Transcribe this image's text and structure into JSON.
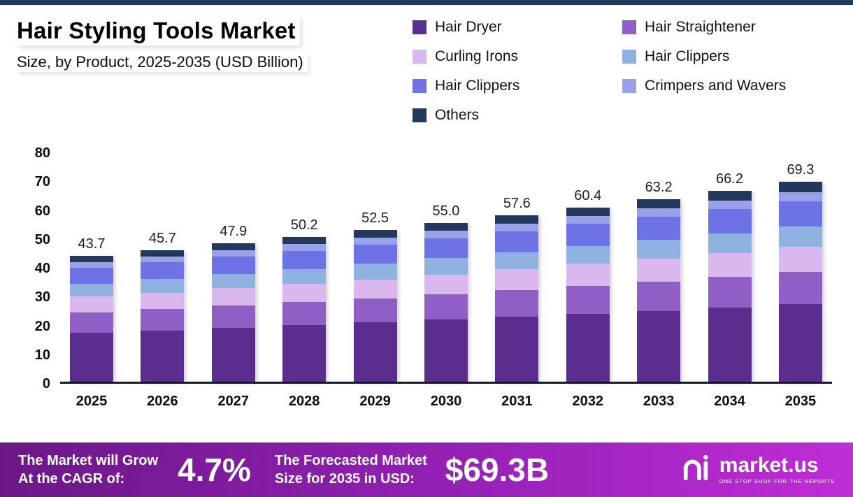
{
  "header": {
    "title": "Hair Styling Tools Market",
    "subtitle": "Size, by Product, 2025-2035 (USD Billion)"
  },
  "legend": [
    {
      "label": "Hair Dryer",
      "color": "#5b2d8f"
    },
    {
      "label": "Hair Straightener",
      "color": "#8f5fc6"
    },
    {
      "label": "Curling Irons",
      "color": "#d9b9ed"
    },
    {
      "label": "Hair Clippers",
      "color": "#8fb2e0"
    },
    {
      "label": "Hair Clippers",
      "color": "#6d72e4"
    },
    {
      "label": "Crimpers and Wavers",
      "color": "#9aa0ea"
    },
    {
      "label": "Others",
      "color": "#20395c"
    }
  ],
  "chart_data": {
    "type": "bar",
    "stacked": true,
    "title": "Hair Styling Tools Market Size, by Product, 2025-2035 (USD Billion)",
    "xlabel": "",
    "ylabel": "",
    "ylim": [
      0,
      80
    ],
    "yticks": [
      0,
      10,
      20,
      30,
      40,
      50,
      60,
      70,
      80
    ],
    "grid": false,
    "legend_position": "top-right",
    "categories": [
      "2025",
      "2026",
      "2027",
      "2028",
      "2029",
      "2030",
      "2031",
      "2032",
      "2033",
      "2034",
      "2035"
    ],
    "totals": [
      "43.7",
      "45.7",
      "47.9",
      "50.2",
      "52.5",
      "55.0",
      "57.6",
      "60.4",
      "63.2",
      "66.2",
      "69.3"
    ],
    "series": [
      {
        "name": "Hair Dryer",
        "color": "#5b2d8f",
        "values": [
          17.0,
          17.8,
          18.7,
          19.6,
          20.5,
          21.5,
          22.5,
          23.6,
          24.6,
          25.8,
          27.0
        ]
      },
      {
        "name": "Hair Straightener",
        "color": "#8f5fc6",
        "values": [
          7.0,
          7.3,
          7.7,
          8.0,
          8.4,
          8.8,
          9.2,
          9.7,
          10.1,
          10.6,
          11.1
        ]
      },
      {
        "name": "Curling Irons",
        "color": "#d9b9ed",
        "values": [
          5.5,
          5.8,
          6.0,
          6.3,
          6.6,
          6.9,
          7.3,
          7.6,
          8.0,
          8.3,
          8.7
        ]
      },
      {
        "name": "Hair Clippers",
        "color": "#8fb2e0",
        "values": [
          4.5,
          4.7,
          4.9,
          5.2,
          5.4,
          5.7,
          5.9,
          6.2,
          6.5,
          6.8,
          7.1
        ]
      },
      {
        "name": "Hair Clippers",
        "color": "#6d72e4",
        "values": [
          5.5,
          5.8,
          6.0,
          6.3,
          6.6,
          6.9,
          7.3,
          7.6,
          8.0,
          8.3,
          8.7
        ]
      },
      {
        "name": "Crimpers and Wavers",
        "color": "#9aa0ea",
        "values": [
          2.0,
          2.1,
          2.2,
          2.3,
          2.4,
          2.5,
          2.6,
          2.8,
          2.9,
          3.0,
          3.2
        ]
      },
      {
        "name": "Others",
        "color": "#20395c",
        "values": [
          2.2,
          2.2,
          2.4,
          2.5,
          2.6,
          2.7,
          2.8,
          2.9,
          3.1,
          3.4,
          3.5
        ]
      }
    ]
  },
  "footer": {
    "cagr_label_line1": "The Market will Grow",
    "cagr_label_line2": "At the CAGR of:",
    "cagr_value": "4.7%",
    "forecast_label_line1": "The Forecasted Market",
    "forecast_label_line2": "Size for 2035 in USD:",
    "forecast_value": "$69.3B",
    "brand": "market.us",
    "brand_tagline": "ONE STOP SHOP FOR THE REPORTS"
  }
}
